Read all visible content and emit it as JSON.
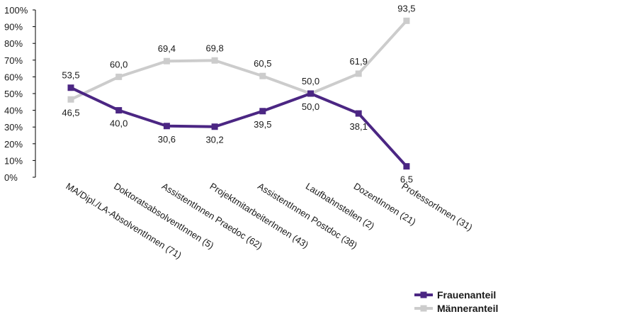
{
  "chart_data": {
    "type": "line",
    "categories": [
      "MA/Dipl./LA-AbsolventInnen (71)",
      "DoktoratsabsolventInnen (5)",
      "AssistentInnen Praedoc (62)",
      "ProjektmitarbeiterInnen (43)",
      "AssistentInnen Postdoc (38)",
      "Laufbahnstellen (2)",
      "DozentInnen (21)",
      "ProfessorInnen (31)"
    ],
    "series": [
      {
        "name": "Frauenanteil",
        "color": "#4b2683",
        "values": [
          53.5,
          40.0,
          30.6,
          30.2,
          39.5,
          50.0,
          38.1,
          6.5
        ],
        "labels": [
          "53,5",
          "40,0",
          "30,6",
          "30,2",
          "39,5",
          "50,0",
          "38,1",
          "6,5"
        ]
      },
      {
        "name": "Männeranteil",
        "color": "#cccccc",
        "values": [
          46.5,
          60.0,
          69.4,
          69.8,
          60.5,
          50.0,
          61.9,
          93.5
        ],
        "labels": [
          "46,5",
          "60,0",
          "69,4",
          "69,8",
          "60,5",
          "50,0",
          "61,9",
          "93,5"
        ]
      }
    ],
    "ylim": [
      0,
      100
    ],
    "yticks": [
      "0%",
      "10%",
      "20%",
      "30%",
      "40%",
      "50%",
      "60%",
      "70%",
      "80%",
      "90%",
      "100%"
    ],
    "grid": false,
    "legend_position": "bottom-right"
  }
}
